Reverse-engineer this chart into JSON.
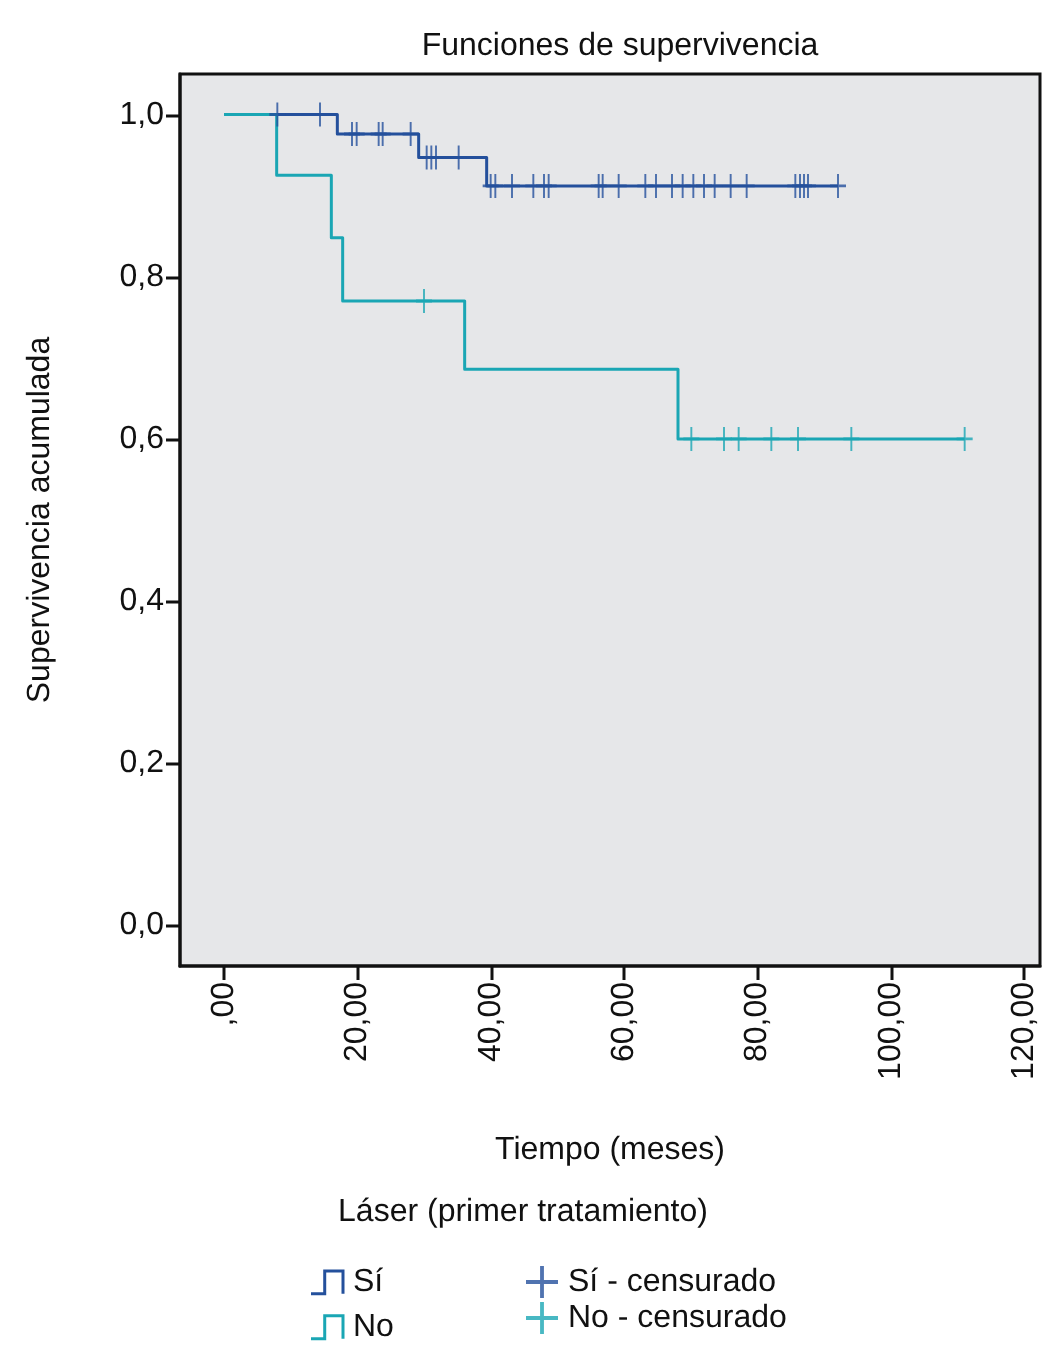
{
  "chart_data": {
    "type": "step",
    "title": "Funciones de supervivencia",
    "xlabel": "Tiempo (meses)",
    "ylabel": "Supervivencia acumulada",
    "legend_title": "Láser (primer tratamiento)",
    "xlim": [
      -6.6,
      122.4
    ],
    "ylim": [
      -0.05,
      1.05
    ],
    "xticks": [
      {
        "value": 0,
        "label": ",00"
      },
      {
        "value": 20,
        "label": "20,00"
      },
      {
        "value": 40,
        "label": "40,00"
      },
      {
        "value": 60,
        "label": "60,00"
      },
      {
        "value": 80,
        "label": "80,00"
      },
      {
        "value": 100,
        "label": "100,00"
      },
      {
        "value": 120,
        "label": "120,00"
      }
    ],
    "yticks": [
      {
        "value": 0,
        "label": "0,0"
      },
      {
        "value": 0.2,
        "label": "0,2"
      },
      {
        "value": 0.4,
        "label": "0,4"
      },
      {
        "value": 0.6,
        "label": "0,6"
      },
      {
        "value": 0.8,
        "label": "0,8"
      },
      {
        "value": 1,
        "label": "1,0"
      }
    ],
    "grid": false,
    "legend": "bottom",
    "series": [
      {
        "name": "Sí",
        "color": "#24509c",
        "x": [
          0,
          17,
          29.2,
          39.4,
          92.1
        ],
        "values": [
          1,
          0.976,
          0.947,
          0.912,
          0.912
        ]
      },
      {
        "name": "No",
        "color": "#1aa6b4",
        "x": [
          0,
          7.9,
          16.1,
          17.8,
          36.1,
          68.1,
          111.1
        ],
        "values": [
          1,
          0.925,
          0.848,
          0.77,
          0.686,
          0.6,
          0.6
        ]
      },
      {
        "name": "Sí - censurado",
        "type": "scatter",
        "marker": "cross",
        "color": "#24509c",
        "x": [
          8,
          14.4,
          19.2,
          19.9,
          23.2,
          23.8,
          28,
          30.4,
          31.1,
          31.8,
          35.2,
          40,
          40.7,
          43.2,
          46.4,
          48,
          48.7,
          56.2,
          56.8,
          59.2,
          63.2,
          64.8,
          67.2,
          68.8,
          70.4,
          72,
          73.6,
          76,
          78.4,
          85.7,
          86.4,
          87,
          87.6,
          92.1
        ],
        "values": [
          1,
          1,
          0.976,
          0.976,
          0.976,
          0.976,
          0.976,
          0.947,
          0.947,
          0.947,
          0.947,
          0.912,
          0.912,
          0.912,
          0.912,
          0.912,
          0.912,
          0.912,
          0.912,
          0.912,
          0.912,
          0.912,
          0.912,
          0.912,
          0.912,
          0.912,
          0.912,
          0.912,
          0.912,
          0.912,
          0.912,
          0.912,
          0.912,
          0.912
        ]
      },
      {
        "name": "No - censurado",
        "type": "scatter",
        "marker": "cross",
        "color": "#1aa6b4",
        "x": [
          30,
          70.1,
          75,
          77.2,
          82.1,
          86.1,
          94.1,
          111.1
        ],
        "values": [
          0.77,
          0.6,
          0.6,
          0.6,
          0.6,
          0.6,
          0.6,
          0.6
        ]
      }
    ]
  }
}
